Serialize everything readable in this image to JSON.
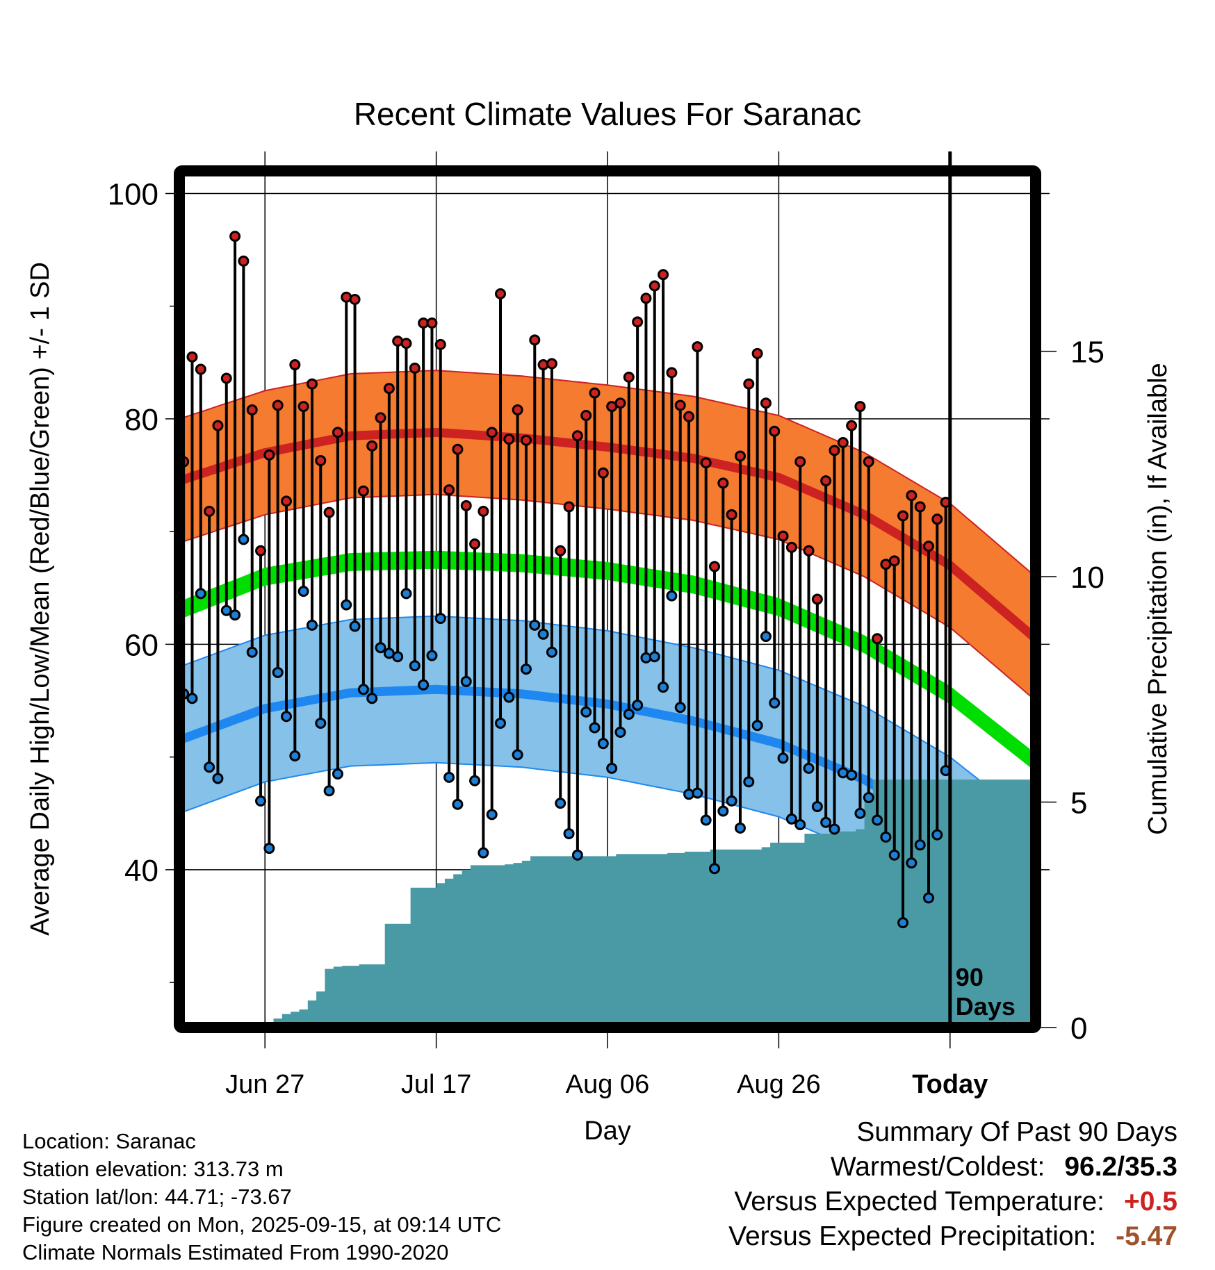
{
  "chart_data": {
    "type": "line",
    "title": "Recent Climate Values For Saranac",
    "xlabel": "Day",
    "ylabel": "Average Daily High/Low/Mean (Red/Blue/Green) +/- 1 SD",
    "y2label": "Cumulative Precipitation (in), If Available",
    "ylim": [
      26,
      102
    ],
    "y2lim": [
      0,
      19
    ],
    "xlim": [
      0,
      100
    ],
    "yticks": [
      "100",
      "80",
      "60",
      "40"
    ],
    "y2ticks": [
      "15",
      "10",
      "5",
      "0"
    ],
    "xticks": [
      {
        "day": 10,
        "label": "Jun 27"
      },
      {
        "day": 30,
        "label": "Jul 17"
      },
      {
        "day": 50,
        "label": "Aug 06"
      },
      {
        "day": 70,
        "label": "Aug 26"
      },
      {
        "day": 90,
        "label": "Today"
      }
    ],
    "today_day": 90,
    "window_label": [
      "90",
      "Days"
    ],
    "normals": {
      "days": [
        0,
        10,
        20,
        30,
        40,
        50,
        60,
        70,
        80,
        90,
        100
      ],
      "high": [
        74.5,
        77.0,
        78.5,
        78.8,
        78.3,
        77.5,
        76.5,
        74.8,
        71.5,
        67.0,
        60.5
      ],
      "low": [
        51.5,
        54.3,
        55.7,
        56.0,
        55.6,
        54.7,
        53.2,
        51.2,
        48.0,
        43.5,
        37.5
      ],
      "mean": [
        63.0,
        66.0,
        67.3,
        67.5,
        67.2,
        66.5,
        65.3,
        63.3,
        60.0,
        55.5,
        49.5
      ],
      "high_sd": 5.5,
      "low_sd": 6.5,
      "mean_sd": 0.8
    },
    "series": [
      {
        "name": "High",
        "color": "#cc2222",
        "values": [
          76.2,
          85.5,
          84.4,
          71.8,
          79.4,
          83.6,
          96.2,
          94.0,
          80.8,
          68.3,
          76.8,
          81.2,
          72.7,
          84.8,
          81.1,
          83.1,
          76.3,
          71.7,
          78.8,
          90.8,
          90.6,
          73.6,
          77.6,
          80.1,
          82.7,
          86.9,
          86.7,
          84.5,
          88.5,
          88.5,
          86.6,
          73.7,
          77.3,
          72.3,
          68.9,
          71.8,
          78.8,
          91.1,
          78.2,
          80.8,
          78.1,
          87.0,
          84.8,
          84.9,
          68.3,
          72.2,
          78.5,
          80.3,
          82.3,
          75.2,
          81.1,
          81.4,
          83.7,
          88.6,
          90.7,
          91.8,
          92.8,
          84.1,
          81.2,
          80.2,
          86.4,
          76.1,
          66.9,
          74.3,
          71.5,
          76.7,
          83.1,
          85.8,
          81.4,
          78.9,
          69.6,
          68.6,
          76.2,
          68.3,
          64.0,
          74.5,
          77.2,
          77.9,
          79.4,
          81.1,
          76.2,
          60.5,
          67.1,
          67.4,
          71.4,
          73.2,
          72.2,
          68.7,
          71.1,
          72.6
        ]
      },
      {
        "name": "Low",
        "color": "#1e7fd6",
        "values": [
          55.6,
          55.2,
          64.5,
          49.1,
          48.1,
          63.0,
          62.6,
          69.3,
          59.3,
          46.1,
          41.9,
          57.5,
          53.6,
          50.1,
          64.7,
          61.7,
          53.0,
          47.0,
          48.5,
          63.5,
          61.6,
          56.0,
          55.2,
          59.7,
          59.2,
          58.9,
          64.5,
          58.1,
          56.4,
          59.0,
          62.3,
          48.2,
          45.8,
          56.7,
          47.9,
          41.5,
          44.9,
          53.0,
          55.3,
          50.2,
          57.8,
          61.7,
          60.9,
          59.3,
          45.9,
          43.2,
          41.3,
          54.0,
          52.6,
          51.2,
          49.0,
          52.2,
          53.8,
          54.6,
          58.8,
          58.9,
          56.2,
          64.3,
          54.4,
          46.7,
          46.8,
          44.4,
          40.1,
          45.2,
          46.1,
          43.7,
          47.8,
          52.8,
          60.7,
          54.8,
          49.9,
          44.5,
          44.0,
          49.0,
          45.6,
          44.2,
          43.6,
          48.6,
          48.4,
          45.0,
          46.4,
          44.4,
          42.9,
          41.3,
          35.3,
          40.6,
          42.2,
          37.5,
          43.1,
          48.8
        ]
      },
      {
        "name": "Cumulative Precipitation",
        "color": "#4a9aa5",
        "values": [
          0,
          0,
          0,
          0,
          0,
          0.02,
          0.05,
          0.08,
          0.08,
          0.1,
          0.1,
          0.2,
          0.3,
          0.35,
          0.4,
          0.6,
          0.8,
          1.3,
          1.35,
          1.37,
          1.37,
          1.4,
          1.4,
          1.4,
          2.3,
          2.3,
          2.3,
          3.1,
          3.1,
          3.1,
          3.2,
          3.3,
          3.4,
          3.5,
          3.6,
          3.6,
          3.6,
          3.6,
          3.62,
          3.65,
          3.7,
          3.8,
          3.8,
          3.8,
          3.8,
          3.8,
          3.8,
          3.8,
          3.8,
          3.8,
          3.8,
          3.85,
          3.85,
          3.85,
          3.85,
          3.85,
          3.85,
          3.87,
          3.87,
          3.9,
          3.9,
          3.9,
          3.95,
          3.95,
          3.95,
          3.95,
          3.95,
          3.95,
          4.0,
          4.1,
          4.1,
          4.1,
          4.1,
          4.3,
          4.3,
          4.3,
          4.3,
          4.35,
          4.35,
          4.4,
          5.1,
          5.5,
          5.5,
          5.5,
          5.5,
          5.5,
          5.5,
          5.5,
          5.5,
          5.5
        ]
      }
    ]
  },
  "info": {
    "location": "Location: Saranac",
    "elevation": "Station elevation: 313.73 m",
    "latlon": "Station lat/lon: 44.71; -73.67",
    "created": "Figure created on Mon, 2025-09-15, at 09:14 UTC",
    "normals": "Climate Normals Estimated From 1990-2020"
  },
  "summary": {
    "heading": "Summary Of Past 90 Days",
    "warm_label": "Warmest/Coldest:",
    "warm_value": "96.2/35.3",
    "temp_label": "Versus Expected Temperature:",
    "temp_value": "+0.5",
    "temp_color": "#cc2222",
    "precip_label": "Versus Expected Precipitation:",
    "precip_value": "-5.47",
    "precip_color": "#a0522d"
  },
  "colors": {
    "high_band": "#f47b30",
    "high_line": "#cc2222",
    "low_band": "#85c1e9",
    "low_line": "#1e88f0",
    "mean_band": "#00dd00",
    "precip": "#4a9aa5",
    "high_dot": "#cc2222",
    "low_dot": "#1e7fd6"
  }
}
